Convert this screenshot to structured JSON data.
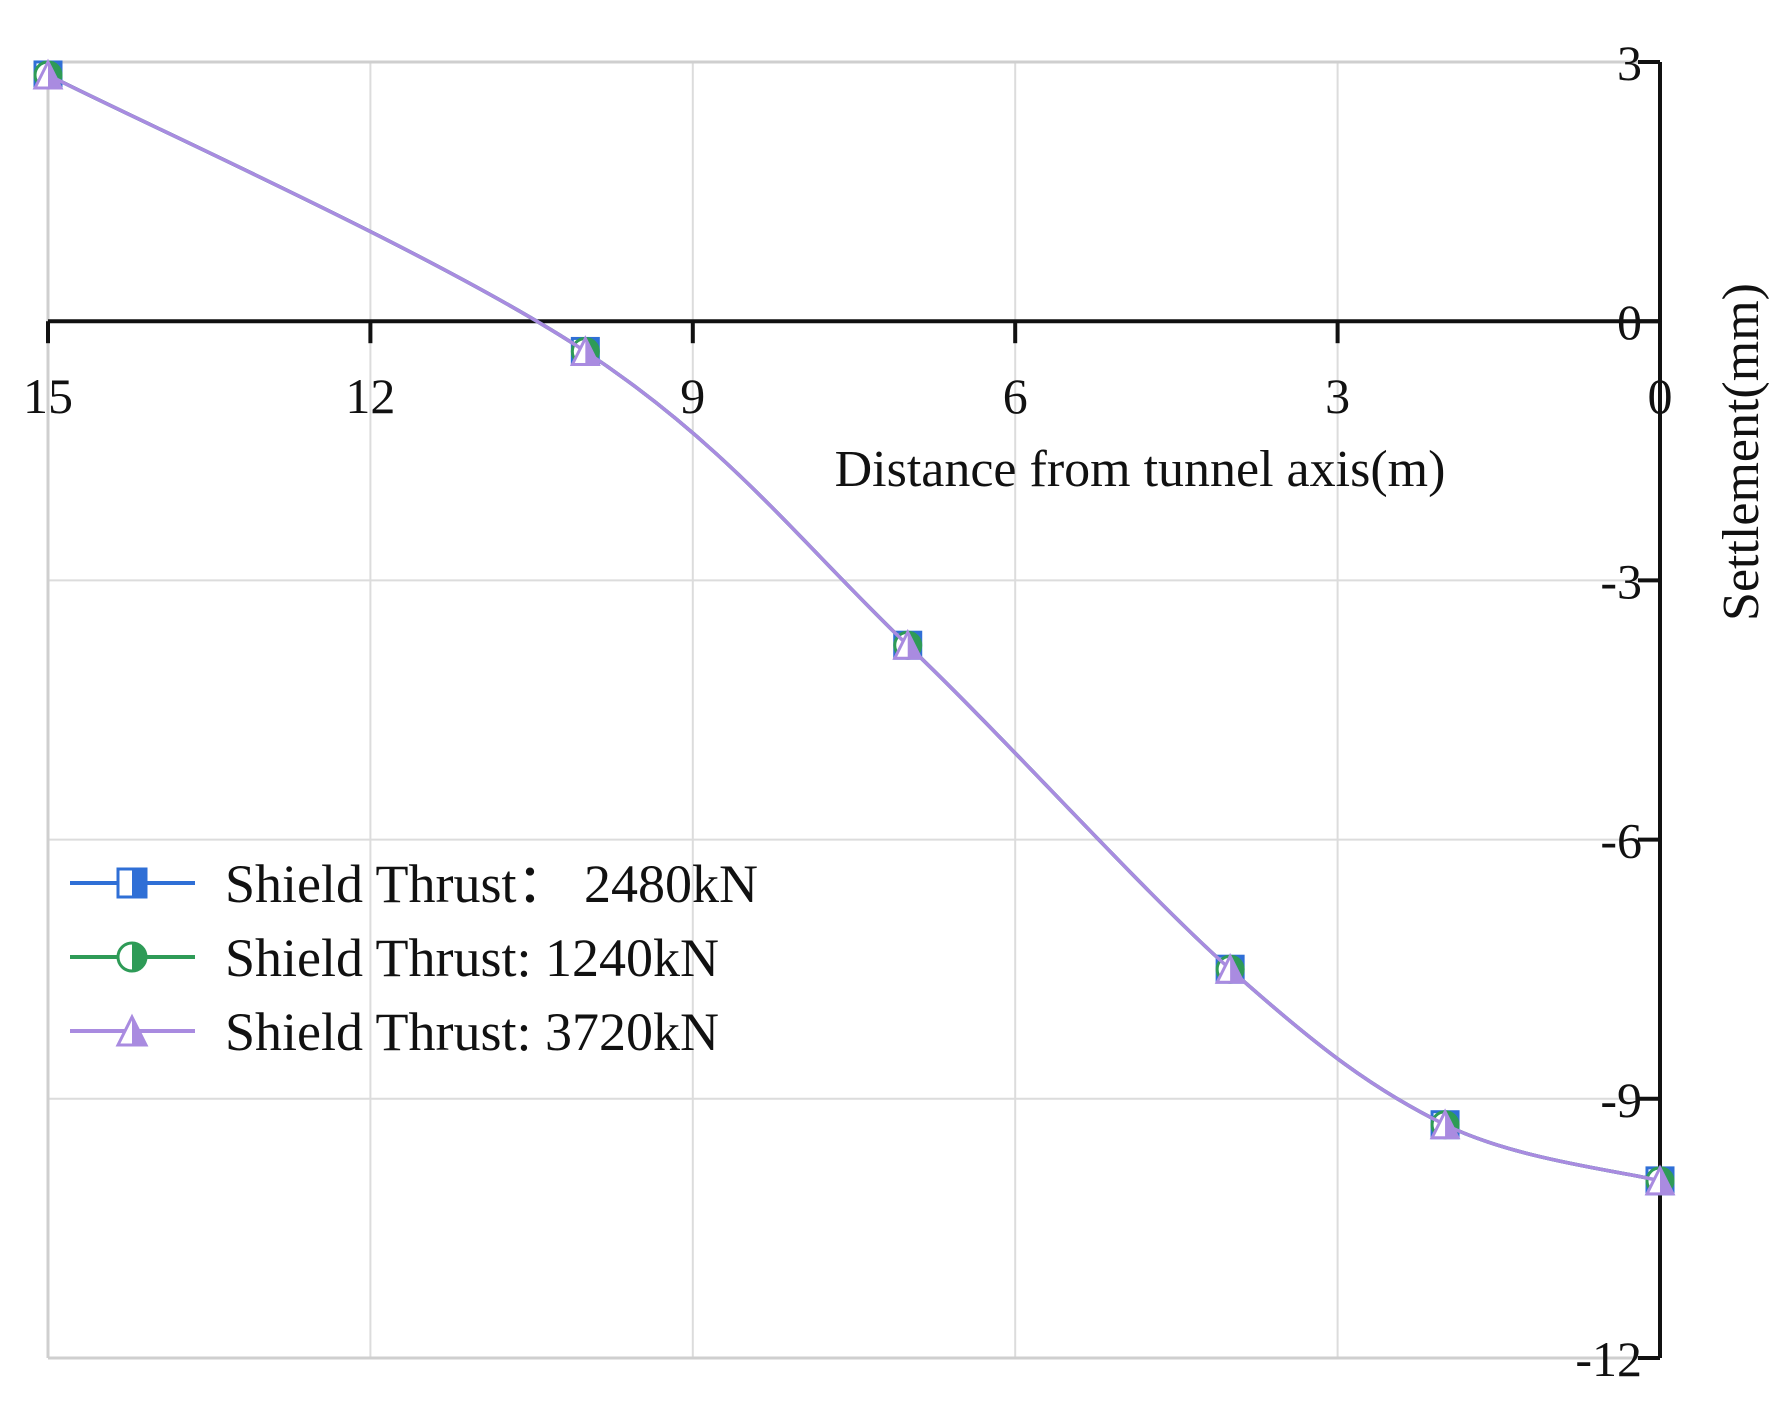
{
  "chart_data": {
    "type": "line",
    "xlabel": "Distance from tunnel axis(m)",
    "ylabel": "Settlement(mm)",
    "xlim": [
      15,
      0
    ],
    "ylim": [
      -12,
      3
    ],
    "x_reversed": true,
    "y_axis_side": "right",
    "x_axis_position": "y=0",
    "grid": true,
    "legend_position": "middle-left",
    "x_ticks": [
      15,
      12,
      9,
      6,
      3,
      0
    ],
    "x_tick_labels": [
      "15",
      "12",
      "9",
      "6",
      "3",
      "0"
    ],
    "y_ticks": [
      3,
      0,
      -3,
      -6,
      -9,
      -12
    ],
    "y_tick_labels": [
      "3",
      "0",
      "-3",
      "-6",
      "-9",
      "-12"
    ],
    "x": [
      15,
      10,
      7,
      4,
      2,
      0
    ],
    "series": [
      {
        "name": "Shield Thrust： 2480kN",
        "marker": "half-square",
        "color": "#2f6fd6",
        "values": [
          2.85,
          -0.35,
          -3.75,
          -7.5,
          -9.3,
          -9.95
        ]
      },
      {
        "name": "Shield Thrust:  1240kN",
        "marker": "half-circle",
        "color": "#2e9b57",
        "values": [
          2.85,
          -0.35,
          -3.75,
          -7.5,
          -9.3,
          -9.95
        ]
      },
      {
        "name": "Shield Thrust:  3720kN",
        "marker": "half-triangle",
        "color": "#a98be0",
        "values": [
          2.85,
          -0.35,
          -3.75,
          -7.5,
          -9.3,
          -9.95
        ]
      }
    ]
  }
}
